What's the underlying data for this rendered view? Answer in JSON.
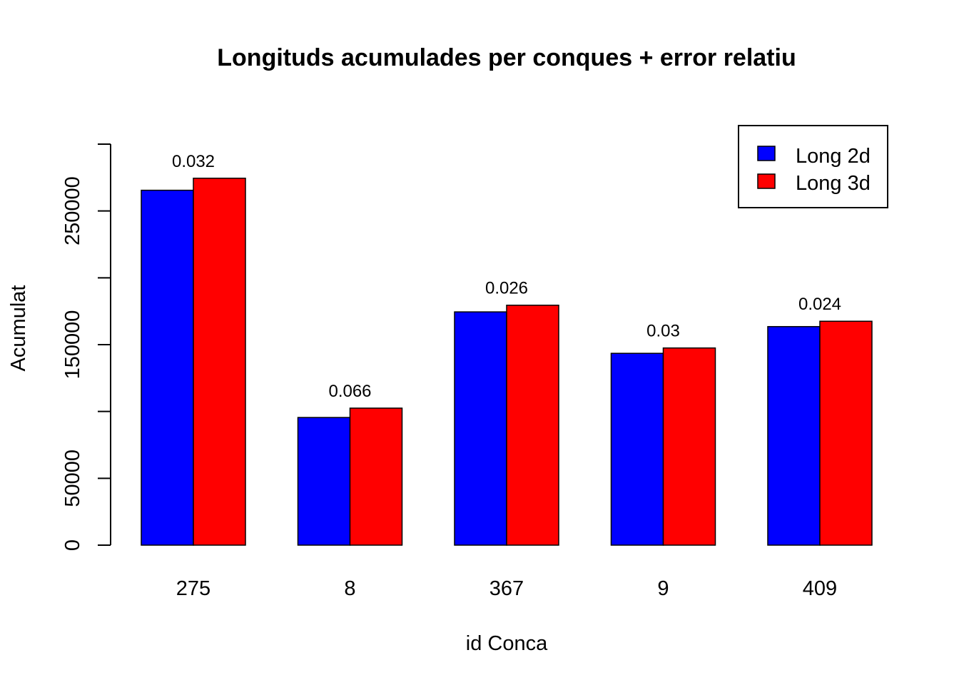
{
  "chart_data": {
    "type": "bar",
    "title": "Longituds acumulades per conques + error relatiu",
    "xlabel": "id Conca",
    "ylabel": "Acumulat",
    "categories": [
      "275",
      "8",
      "367",
      "9",
      "409"
    ],
    "series": [
      {
        "name": "Long 2d",
        "color": "#0000ff",
        "values": [
          265500,
          95500,
          174500,
          143500,
          163500
        ]
      },
      {
        "name": "Long 3d",
        "color": "#ff0000",
        "values": [
          274500,
          102500,
          179500,
          147500,
          167500
        ]
      }
    ],
    "annotations": [
      "0.032",
      "0.066",
      "0.026",
      "0.03",
      "0.024"
    ],
    "ylim": [
      0,
      300000
    ],
    "yticks": [
      0,
      50000,
      100000,
      150000,
      200000,
      250000,
      300000
    ],
    "ytick_labels": [
      "0",
      "50000",
      "",
      "150000",
      "",
      "250000",
      ""
    ],
    "grid": false,
    "legend_position": "top-right"
  }
}
